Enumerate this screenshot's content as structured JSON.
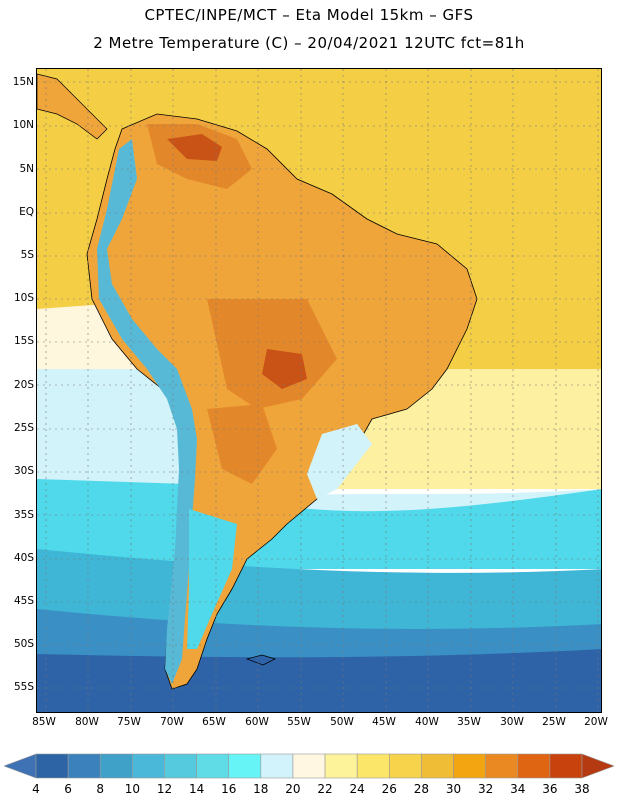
{
  "title": {
    "line1": "CPTEC/INPE/MCT –  Eta Model 15km – GFS",
    "line2": "2 Metre Temperature (C) – 20/04/2021 12UTC fct=81h"
  },
  "axes": {
    "lat_labels": [
      "15N",
      "10N",
      "5N",
      "EQ",
      "5S",
      "10S",
      "15S",
      "20S",
      "25S",
      "30S",
      "35S",
      "40S",
      "45S",
      "50S",
      "55S"
    ],
    "lon_labels": [
      "85W",
      "80W",
      "75W",
      "70W",
      "65W",
      "60W",
      "55W",
      "50W",
      "45W",
      "40W",
      "35W",
      "30W",
      "25W",
      "20W"
    ]
  },
  "colorbar": {
    "labels": [
      "4",
      "6",
      "8",
      "10",
      "12",
      "14",
      "16",
      "18",
      "20",
      "22",
      "24",
      "26",
      "28",
      "30",
      "32",
      "34",
      "36",
      "38"
    ],
    "colors": [
      "#3f72b4",
      "#2c64a6",
      "#3b82bd",
      "#3fa0c8",
      "#4ab8d8",
      "#55c9dd",
      "#5fdce6",
      "#66f4f6",
      "#d2f3fb",
      "#fff7e2",
      "#fdf39a",
      "#fbe66a",
      "#f7d24b",
      "#efbd36",
      "#f3a511",
      "#ea8921",
      "#e06512",
      "#c8420e",
      "#b53a12"
    ]
  },
  "regions": {
    "ocean_pacific_north": "#f5d451",
    "ocean_atlantic_tropical": "#f4cf46",
    "ocean_subtropical": "#fdf0a1",
    "ocean_warm_transition": "#fff6de",
    "ocean_cool": "#d3f3fb",
    "ocean_cold_1": "#4fd9ea",
    "ocean_cold_2": "#3fb6d6",
    "ocean_cold_3": "#3a8fc4",
    "ocean_cold_4": "#2e63a7",
    "land_warm": "#f0a53a",
    "land_hot": "#e3882a",
    "land_very_hot": "#c95316",
    "andes": "#58b9d6"
  }
}
